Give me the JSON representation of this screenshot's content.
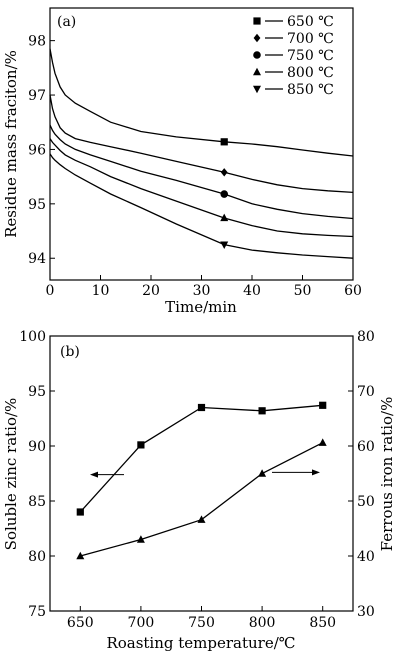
{
  "chart_data": [
    {
      "type": "line",
      "panel_label": "(a)",
      "xlabel": "Time/min",
      "ylabel": "Residue mass fraciton/%",
      "xlim": [
        0,
        60
      ],
      "ylim": [
        93.6,
        98.6
      ],
      "xticks": [
        0,
        10,
        20,
        30,
        40,
        50,
        60
      ],
      "yticks": [
        94,
        95,
        96,
        97,
        98
      ],
      "marker_x": 34.5,
      "legend_position": "top-right",
      "series": [
        {
          "name": "650 ℃",
          "marker": "square",
          "x": [
            0,
            0.5,
            1,
            2,
            3,
            5,
            8,
            12,
            18,
            25,
            34.5,
            40,
            45,
            50,
            55,
            60
          ],
          "y": [
            97.85,
            97.6,
            97.4,
            97.15,
            97.0,
            96.85,
            96.7,
            96.5,
            96.33,
            96.23,
            96.14,
            96.1,
            96.05,
            95.99,
            95.93,
            95.88
          ]
        },
        {
          "name": "700 ℃",
          "marker": "diamond",
          "x": [
            0,
            0.5,
            1,
            2,
            3,
            5,
            8,
            12,
            18,
            25,
            34.5,
            40,
            45,
            50,
            55,
            60
          ],
          "y": [
            97.0,
            96.75,
            96.6,
            96.4,
            96.3,
            96.2,
            96.13,
            96.05,
            95.93,
            95.78,
            95.58,
            95.45,
            95.35,
            95.28,
            95.24,
            95.21
          ]
        },
        {
          "name": "750 ℃",
          "marker": "circle",
          "x": [
            0,
            0.5,
            1,
            2,
            3,
            5,
            8,
            12,
            18,
            25,
            34.5,
            40,
            45,
            50,
            55,
            60
          ],
          "y": [
            96.45,
            96.35,
            96.28,
            96.18,
            96.1,
            96.0,
            95.9,
            95.78,
            95.6,
            95.43,
            95.18,
            95.0,
            94.9,
            94.82,
            94.77,
            94.73
          ]
        },
        {
          "name": "800 ℃",
          "marker": "triangle-up",
          "x": [
            0,
            0.5,
            1,
            2,
            3,
            5,
            8,
            12,
            18,
            25,
            34.5,
            40,
            45,
            50,
            55,
            60
          ],
          "y": [
            96.2,
            96.13,
            96.08,
            95.98,
            95.9,
            95.8,
            95.68,
            95.5,
            95.28,
            95.05,
            94.74,
            94.6,
            94.5,
            94.45,
            94.42,
            94.4
          ]
        },
        {
          "name": "850 ℃",
          "marker": "triangle-down",
          "x": [
            0,
            0.5,
            1,
            2,
            3,
            5,
            8,
            12,
            18,
            25,
            34.5,
            40,
            45,
            50,
            55,
            60
          ],
          "y": [
            95.92,
            95.85,
            95.8,
            95.72,
            95.65,
            95.53,
            95.38,
            95.18,
            94.93,
            94.63,
            94.25,
            94.15,
            94.1,
            94.06,
            94.03,
            94.0
          ]
        }
      ]
    },
    {
      "type": "line",
      "panel_label": "(b)",
      "xlabel": "Roasting temperature/℃",
      "ylabel_left": "Soluble zinc ratio/%",
      "ylabel_right": "Ferrous iron ratio/%",
      "categories": [
        650,
        700,
        750,
        800,
        850
      ],
      "xlim": [
        625,
        875
      ],
      "ylim_left": [
        75,
        100
      ],
      "ylim_right": [
        30,
        80
      ],
      "yticks_left": [
        75,
        80,
        85,
        90,
        95,
        100
      ],
      "yticks_right": [
        30,
        40,
        50,
        60,
        70,
        80
      ],
      "series": [
        {
          "name": "Soluble zinc ratio",
          "axis": "left",
          "marker": "square",
          "values": [
            84.0,
            90.1,
            93.5,
            93.2,
            93.7
          ]
        },
        {
          "name": "Ferrous iron ratio",
          "axis": "right",
          "marker": "triangle-up",
          "values": [
            40.0,
            43.0,
            46.6,
            55.0,
            60.6
          ]
        }
      ]
    }
  ]
}
